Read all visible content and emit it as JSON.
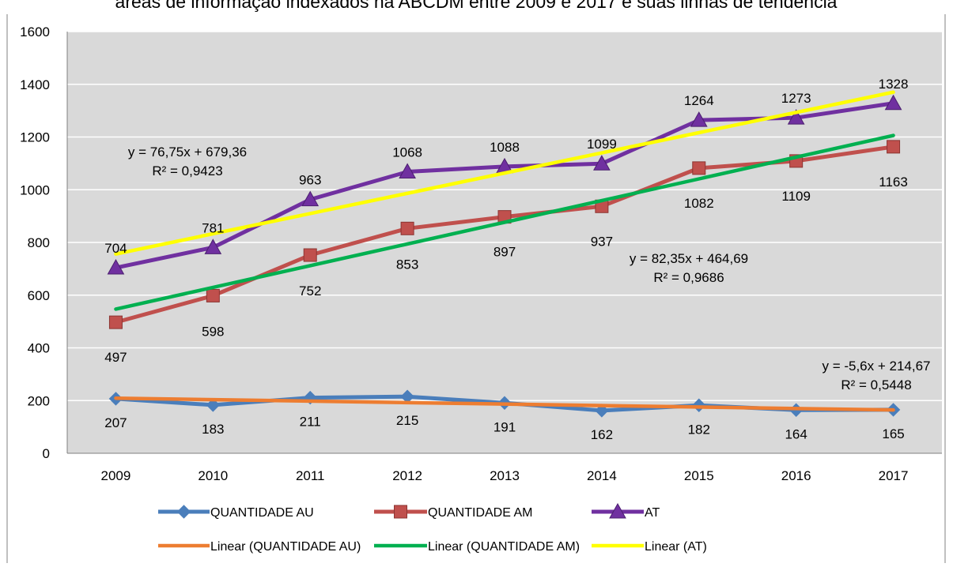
{
  "chart_data": {
    "type": "line",
    "title": "áreas de informação indexados na ABCDM entre 2009 e 2017 e suas linhas de tendência",
    "categories": [
      "2009",
      "2010",
      "2011",
      "2012",
      "2013",
      "2014",
      "2015",
      "2016",
      "2017"
    ],
    "ylim": [
      0,
      1600
    ],
    "yticks": [
      "0",
      "200",
      "400",
      "600",
      "800",
      "1000",
      "1200",
      "1400",
      "1600"
    ],
    "grid": true,
    "legend_position": "bottom",
    "series": [
      {
        "name": "QUANTIDADE AU",
        "values": [
          207,
          183,
          211,
          215,
          191,
          162,
          182,
          164,
          165
        ],
        "color": "#4a7ebb",
        "marker": "diamond"
      },
      {
        "name": "QUANTIDADE AM",
        "values": [
          497,
          598,
          752,
          853,
          897,
          937,
          1082,
          1109,
          1163
        ],
        "color": "#c0504d",
        "marker": "square"
      },
      {
        "name": "AT",
        "values": [
          704,
          781,
          963,
          1068,
          1088,
          1099,
          1264,
          1273,
          1328
        ],
        "color": "#7030a0",
        "marker": "triangle"
      }
    ],
    "trendlines": [
      {
        "name": "Linear (QUANTIDADE AU)",
        "slope": -5.6,
        "intercept": 214.67,
        "color": "#ed7d31",
        "equation": "y = -5,6x + 214,67",
        "r2": "R² = 0,5448"
      },
      {
        "name": "Linear (QUANTIDADE AM)",
        "slope": 82.35,
        "intercept": 464.69,
        "color": "#00b050",
        "equation": "y = 82,35x + 464,69",
        "r2": "R² = 0,9686"
      },
      {
        "name": "Linear (AT)",
        "slope": 76.75,
        "intercept": 679.36,
        "color": "#ffff00",
        "equation": "y = 76,75x + 679,36",
        "r2": "R² = 0,9423"
      }
    ]
  }
}
